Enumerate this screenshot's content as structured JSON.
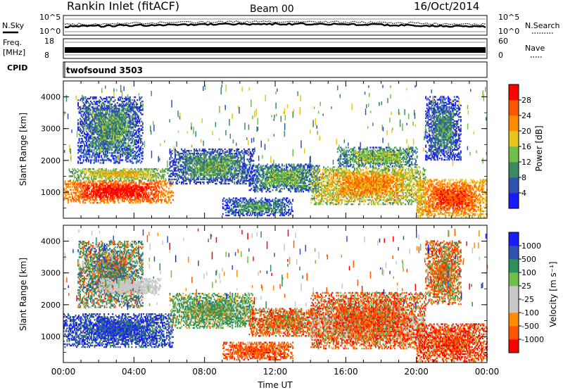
{
  "header": {
    "station": "Rankin Inlet (fitACF)",
    "beam": "Beam 00",
    "date": "16/Oct/2014"
  },
  "noise_panel": {
    "left_label": "N.Sky",
    "right_label": "N.Search",
    "left_ticks": [
      "10^5",
      "10^0"
    ],
    "right_ticks": [
      "10^5",
      "10^0"
    ]
  },
  "freq_panel": {
    "left_label_line1": "Freq.",
    "left_label_line2": "[MHz]",
    "right_label": "Nave",
    "left_ticks": [
      "18",
      "8"
    ],
    "right_ticks": [
      "60",
      "0"
    ]
  },
  "cpid_panel": {
    "label": "CPID",
    "program": "twofsound 3503"
  },
  "colors": {
    "power": [
      "#1a1aff",
      "#2e53b0",
      "#3c8a62",
      "#6fbf4a",
      "#e8c51c",
      "#ff8c00",
      "#ff5500",
      "#ff0000"
    ],
    "velocity": [
      "#ff0000",
      "#ff5500",
      "#ff8c00",
      "#c8c8c8",
      "#c8c8c8",
      "#6fbf4a",
      "#2f8f5a",
      "#2e53b0",
      "#1a1aff"
    ],
    "ground": "#b0b0b0"
  },
  "chart_data": [
    {
      "type": "heatmap",
      "name": "power",
      "ylabel": "Slant Range [km]",
      "ylim": [
        180,
        4500
      ],
      "yticks": [
        "1000",
        "2000",
        "3000",
        "4000"
      ],
      "xlim": [
        0,
        24
      ],
      "colorbar": {
        "label": "Power [dB]",
        "ticks": [
          "4",
          "8",
          "12",
          "16",
          "20",
          "24",
          "28"
        ],
        "range": [
          0,
          32
        ]
      },
      "regions": [
        {
          "t0": 0.0,
          "t1": 6.2,
          "r0": 650,
          "r1": 1350,
          "peak": 30,
          "spread": 3
        },
        {
          "t0": 0.3,
          "t1": 6.0,
          "r0": 1350,
          "r1": 1750,
          "peak": 19,
          "spread": 4
        },
        {
          "t0": 0.8,
          "t1": 4.5,
          "r0": 1900,
          "r1": 4000,
          "peak": 11,
          "spread": 6
        },
        {
          "t0": 6.0,
          "t1": 10.8,
          "r0": 1250,
          "r1": 2350,
          "peak": 12,
          "spread": 5
        },
        {
          "t0": 9.0,
          "t1": 13.0,
          "r0": 250,
          "r1": 800,
          "peak": 11,
          "spread": 5
        },
        {
          "t0": 10.5,
          "t1": 14.5,
          "r0": 1000,
          "r1": 1900,
          "peak": 13,
          "spread": 5
        },
        {
          "t0": 14.0,
          "t1": 20.5,
          "r0": 600,
          "r1": 1800,
          "peak": 22,
          "spread": 6
        },
        {
          "t0": 15.5,
          "t1": 20.0,
          "r0": 1800,
          "r1": 2400,
          "peak": 15,
          "spread": 5
        },
        {
          "t0": 20.0,
          "t1": 24.0,
          "r0": 200,
          "r1": 1400,
          "peak": 27,
          "spread": 4
        },
        {
          "t0": 20.5,
          "t1": 22.5,
          "r0": 2000,
          "r1": 4000,
          "peak": 10,
          "spread": 5
        }
      ]
    },
    {
      "type": "heatmap",
      "name": "velocity",
      "ylabel": "Slant Range [km]",
      "xlabel": "Time UT",
      "ylim": [
        180,
        4500
      ],
      "yticks": [
        "1000",
        "2000",
        "3000",
        "4000"
      ],
      "xlim": [
        0,
        24
      ],
      "xticks": [
        "00:00",
        "04:00",
        "08:00",
        "12:00",
        "16:00",
        "20:00",
        "00:00"
      ],
      "colorbar": {
        "label": "Velocity [m s⁻¹]",
        "ticks": [
          "1000",
          "500",
          "100",
          "25",
          "-25",
          "-100",
          "-500",
          "-1000"
        ]
      },
      "regions": [
        {
          "t0": 0.0,
          "t1": 6.2,
          "r0": 650,
          "r1": 1700,
          "vel": 900,
          "spread": 700
        },
        {
          "t0": 0.8,
          "t1": 4.5,
          "r0": 1900,
          "r1": 4000,
          "vel": 200,
          "spread": 500
        },
        {
          "t0": 2.0,
          "t1": 5.5,
          "r0": 2300,
          "r1": 2800,
          "vel": 0,
          "spread": 20
        },
        {
          "t0": 6.0,
          "t1": 10.8,
          "r0": 1250,
          "r1": 2350,
          "vel": 150,
          "spread": 250
        },
        {
          "t0": 9.0,
          "t1": 13.0,
          "r0": 250,
          "r1": 800,
          "vel": -300,
          "spread": 300
        },
        {
          "t0": 10.5,
          "t1": 14.5,
          "r0": 1000,
          "r1": 1900,
          "vel": -200,
          "spread": 400
        },
        {
          "t0": 14.0,
          "t1": 20.5,
          "r0": 900,
          "r1": 1700,
          "vel": 0,
          "spread": 20
        },
        {
          "t0": 14.0,
          "t1": 20.5,
          "r0": 600,
          "r1": 2400,
          "vel": -250,
          "spread": 400
        },
        {
          "t0": 20.0,
          "t1": 24.0,
          "r0": 200,
          "r1": 1400,
          "vel": -400,
          "spread": 500
        },
        {
          "t0": 20.5,
          "t1": 22.5,
          "r0": 2000,
          "r1": 4000,
          "vel": -150,
          "spread": 400
        }
      ]
    }
  ]
}
